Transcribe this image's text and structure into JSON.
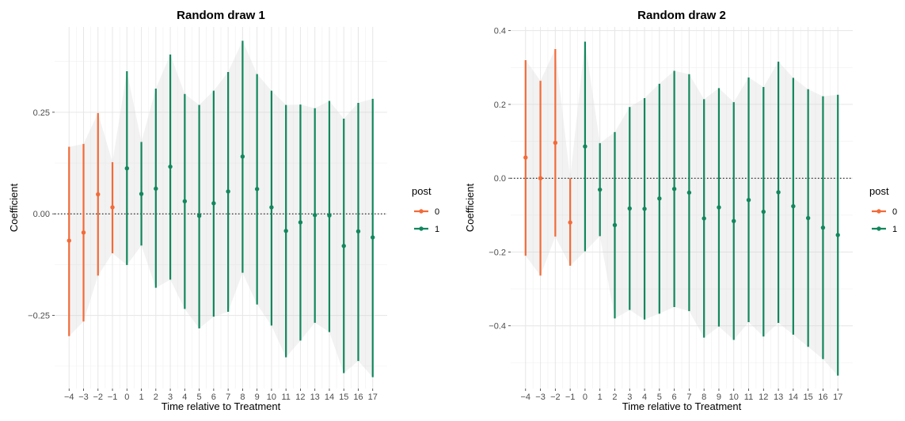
{
  "chart_data": [
    {
      "type": "errorbar",
      "title": "Random draw 1",
      "xlabel": "Time relative to Treatment",
      "ylabel": "Coefficient",
      "x": [
        -4,
        -3,
        -2,
        -1,
        0,
        1,
        2,
        3,
        4,
        5,
        6,
        7,
        8,
        9,
        10,
        11,
        12,
        13,
        14,
        15,
        16,
        17
      ],
      "xticks": [
        "-4",
        "-3",
        "-2",
        "-1",
        "0",
        "1",
        "2",
        "3",
        "4",
        "5",
        "6",
        "7",
        "8",
        "9",
        "10",
        "11",
        "12",
        "13",
        "14",
        "15",
        "16",
        "17"
      ],
      "xlim": [
        -5,
        18
      ],
      "ylim": [
        -0.43,
        0.46
      ],
      "yticks": [
        -0.25,
        0.0,
        0.25
      ],
      "ytick_labels": [
        "-0.25",
        "0.00",
        "0.25"
      ],
      "reference_line": 0,
      "grid": true,
      "series": [
        {
          "name": "0",
          "color": "#f26b38",
          "x": [
            -4,
            -3,
            -2,
            -1
          ],
          "estimate": [
            -0.066,
            -0.046,
            0.048,
            0.016
          ],
          "lower": [
            -0.301,
            -0.265,
            -0.152,
            -0.097
          ],
          "upper": [
            0.165,
            0.172,
            0.248,
            0.127
          ]
        },
        {
          "name": "1",
          "color": "#11875d",
          "x": [
            0,
            1,
            2,
            3,
            4,
            5,
            6,
            7,
            8,
            9,
            10,
            11,
            12,
            13,
            14,
            15,
            16,
            17
          ],
          "estimate": [
            0.112,
            0.049,
            0.062,
            0.116,
            0.031,
            -0.005,
            0.026,
            0.055,
            0.141,
            0.061,
            0.016,
            -0.042,
            -0.021,
            -0.003,
            -0.004,
            -0.079,
            -0.043,
            -0.058
          ],
          "lower": [
            -0.126,
            -0.078,
            -0.182,
            -0.162,
            -0.234,
            -0.282,
            -0.253,
            -0.241,
            -0.145,
            -0.223,
            -0.275,
            -0.353,
            -0.312,
            -0.268,
            -0.291,
            -0.392,
            -0.362,
            -0.402
          ],
          "upper": [
            0.351,
            0.177,
            0.308,
            0.392,
            0.295,
            0.268,
            0.303,
            0.349,
            0.426,
            0.344,
            0.303,
            0.268,
            0.269,
            0.26,
            0.278,
            0.234,
            0.273,
            0.283
          ]
        }
      ],
      "ribbon": {
        "color": "#d3d3d3",
        "x": [
          -4,
          -3,
          -2,
          -1,
          0,
          1,
          2,
          3,
          4,
          5,
          6,
          7,
          8,
          9,
          10,
          11,
          12,
          13,
          14,
          15,
          16,
          17
        ],
        "lower": [
          -0.301,
          -0.265,
          -0.152,
          -0.097,
          -0.126,
          -0.078,
          -0.182,
          -0.162,
          -0.234,
          -0.282,
          -0.253,
          -0.241,
          -0.145,
          -0.223,
          -0.275,
          -0.353,
          -0.312,
          -0.268,
          -0.291,
          -0.392,
          -0.362,
          -0.402
        ],
        "upper": [
          0.165,
          0.172,
          0.248,
          0.127,
          0.351,
          0.177,
          0.308,
          0.392,
          0.295,
          0.268,
          0.303,
          0.349,
          0.426,
          0.344,
          0.303,
          0.268,
          0.269,
          0.26,
          0.278,
          0.234,
          0.273,
          0.283
        ]
      },
      "legend": {
        "title": "post",
        "position": "right",
        "entries": [
          {
            "label": "0",
            "color": "#f26b38"
          },
          {
            "label": "1",
            "color": "#11875d"
          }
        ]
      }
    },
    {
      "type": "errorbar",
      "title": "Random draw 2",
      "xlabel": "Time relative to Treatment",
      "ylabel": "Coefficient",
      "x": [
        -4,
        -3,
        -2,
        -1,
        0,
        1,
        2,
        3,
        4,
        5,
        6,
        7,
        8,
        9,
        10,
        11,
        12,
        13,
        14,
        15,
        16,
        17
      ],
      "xticks": [
        "-4",
        "-3",
        "-2",
        "-1",
        "0",
        "1",
        "2",
        "3",
        "4",
        "5",
        "6",
        "7",
        "8",
        "9",
        "10",
        "11",
        "12",
        "13",
        "14",
        "15",
        "16",
        "17"
      ],
      "xlim": [
        -5,
        18
      ],
      "ylim": [
        -0.57,
        0.41
      ],
      "yticks": [
        -0.4,
        -0.2,
        0.0,
        0.2,
        0.4
      ],
      "ytick_labels": [
        "-0.4",
        "-0.2",
        "0.0",
        "0.2",
        "0.4"
      ],
      "reference_line": 0,
      "grid": true,
      "series": [
        {
          "name": "0",
          "color": "#f26b38",
          "x": [
            -4,
            -3,
            -2,
            -1
          ],
          "estimate": [
            0.056,
            0.0,
            0.096,
            -0.12
          ],
          "lower": [
            -0.21,
            -0.264,
            -0.158,
            -0.237
          ],
          "upper": [
            0.32,
            0.264,
            0.35,
            0.0
          ]
        },
        {
          "name": "1",
          "color": "#11875d",
          "x": [
            0,
            1,
            2,
            3,
            4,
            5,
            6,
            7,
            8,
            9,
            10,
            11,
            12,
            13,
            14,
            15,
            16,
            17
          ],
          "estimate": [
            0.086,
            -0.031,
            -0.127,
            -0.082,
            -0.083,
            -0.055,
            -0.029,
            -0.039,
            -0.109,
            -0.079,
            -0.116,
            -0.059,
            -0.091,
            -0.038,
            -0.076,
            -0.108,
            -0.134,
            -0.154
          ],
          "lower": [
            -0.198,
            -0.157,
            -0.38,
            -0.357,
            -0.383,
            -0.367,
            -0.349,
            -0.36,
            -0.432,
            -0.402,
            -0.438,
            -0.39,
            -0.429,
            -0.392,
            -0.424,
            -0.457,
            -0.49,
            -0.535
          ],
          "upper": [
            0.37,
            0.095,
            0.125,
            0.193,
            0.217,
            0.256,
            0.291,
            0.282,
            0.214,
            0.244,
            0.206,
            0.273,
            0.247,
            0.316,
            0.272,
            0.241,
            0.222,
            0.226
          ]
        }
      ],
      "ribbon": {
        "color": "#d3d3d3",
        "x": [
          -4,
          -3,
          -2,
          -1,
          0,
          1,
          2,
          3,
          4,
          5,
          6,
          7,
          8,
          9,
          10,
          11,
          12,
          13,
          14,
          15,
          16,
          17
        ],
        "lower": [
          -0.21,
          -0.264,
          -0.158,
          -0.237,
          -0.198,
          -0.157,
          -0.38,
          -0.357,
          -0.383,
          -0.367,
          -0.349,
          -0.36,
          -0.432,
          -0.402,
          -0.438,
          -0.39,
          -0.429,
          -0.392,
          -0.424,
          -0.457,
          -0.49,
          -0.535
        ],
        "upper": [
          0.32,
          0.264,
          0.35,
          0.0,
          0.37,
          0.095,
          0.125,
          0.193,
          0.217,
          0.256,
          0.291,
          0.282,
          0.214,
          0.244,
          0.206,
          0.273,
          0.247,
          0.316,
          0.272,
          0.241,
          0.222,
          0.226
        ]
      },
      "legend": {
        "title": "post",
        "position": "right",
        "entries": [
          {
            "label": "0",
            "color": "#f26b38"
          },
          {
            "label": "1",
            "color": "#11875d"
          }
        ]
      }
    }
  ]
}
